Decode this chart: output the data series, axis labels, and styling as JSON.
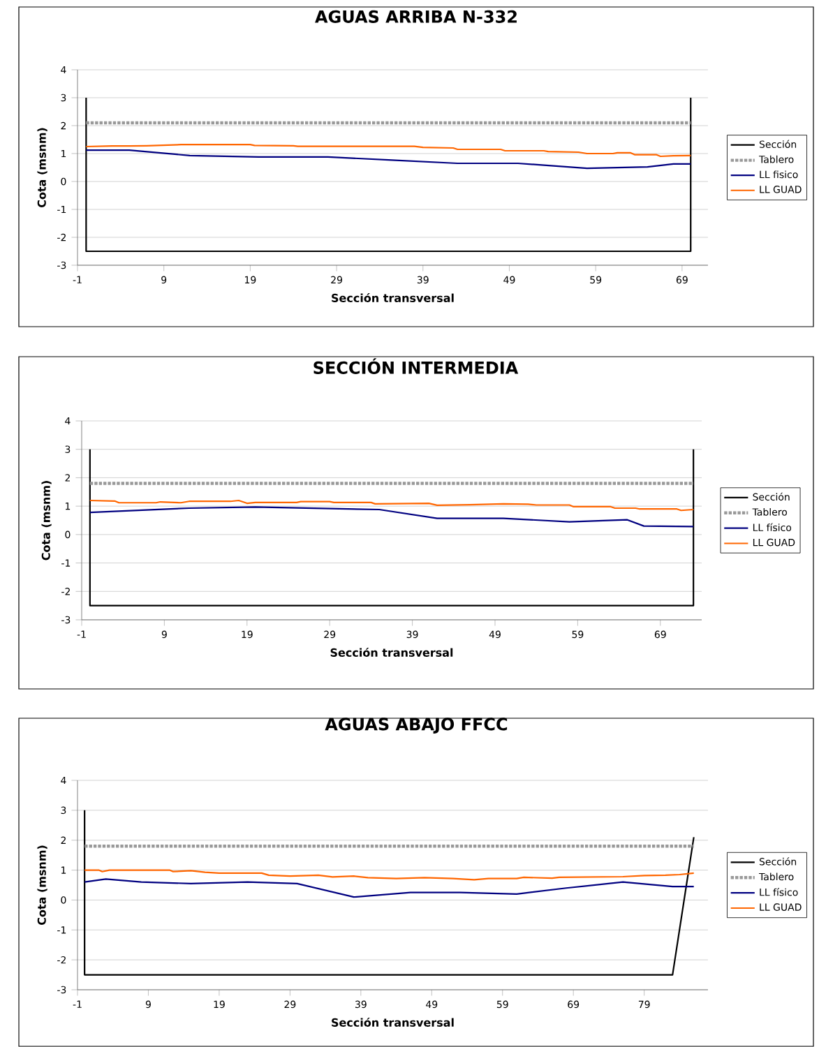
{
  "chart_data": [
    {
      "type": "line",
      "title": "AGUAS ARRIBA N-332",
      "xlabel": "Sección transversal",
      "ylabel": "Cota (msnm)",
      "xlim": [
        -1,
        72
      ],
      "xticks": [
        -1,
        9,
        19,
        29,
        39,
        49,
        59,
        69
      ],
      "ylim": [
        -3,
        4
      ],
      "yticks": [
        -3,
        -2,
        -1,
        0,
        1,
        2,
        3,
        4
      ],
      "grid": "y",
      "legend": "right",
      "series": [
        {
          "name": "Sección",
          "color": "#000000",
          "x": [
            0,
            0,
            70,
            70
          ],
          "values": [
            3,
            -2.5,
            -2.5,
            3
          ]
        },
        {
          "name": "Tablero",
          "color": "#999999",
          "line_style": "dotted",
          "x": [
            0,
            70
          ],
          "values": [
            2.1,
            2.1
          ]
        },
        {
          "name": "LL fisico",
          "color": "#000080",
          "x": [
            0,
            5,
            12,
            20,
            28,
            35,
            43,
            50,
            58,
            65,
            68,
            70
          ],
          "values": [
            1.12,
            1.12,
            0.93,
            0.88,
            0.88,
            0.77,
            0.65,
            0.65,
            0.47,
            0.52,
            0.63,
            0.63
          ]
        },
        {
          "name": "LL GUAD",
          "color": "#ff6600",
          "x": [
            0,
            3,
            5,
            7,
            11,
            19,
            19.5,
            24,
            24.5,
            38,
            39,
            42.5,
            43,
            48,
            48.5,
            53,
            53.5,
            57,
            58,
            61,
            61.5,
            63,
            63.5,
            66,
            66.5,
            68,
            70
          ],
          "values": [
            1.25,
            1.27,
            1.27,
            1.28,
            1.32,
            1.32,
            1.29,
            1.28,
            1.26,
            1.26,
            1.22,
            1.2,
            1.15,
            1.15,
            1.1,
            1.1,
            1.07,
            1.05,
            1.0,
            1.0,
            1.03,
            1.03,
            0.96,
            0.96,
            0.9,
            0.92,
            0.93
          ]
        }
      ]
    },
    {
      "type": "line",
      "title": "SECCIÓN INTERMEDIA",
      "xlabel": "Sección transversal",
      "ylabel": "Cota (msnm)",
      "xlim": [
        -1,
        74
      ],
      "xticks": [
        -1,
        9,
        19,
        29,
        39,
        49,
        59,
        69
      ],
      "ylim": [
        -3,
        4
      ],
      "yticks": [
        -3,
        -2,
        -1,
        0,
        1,
        2,
        3,
        4
      ],
      "grid": "y",
      "legend": "right",
      "series": [
        {
          "name": "Sección",
          "color": "#000000",
          "x": [
            0,
            0,
            73,
            73
          ],
          "values": [
            3,
            -2.5,
            -2.5,
            3
          ]
        },
        {
          "name": "Tablero",
          "color": "#999999",
          "line_style": "dotted",
          "x": [
            0,
            73
          ],
          "values": [
            1.8,
            1.8
          ]
        },
        {
          "name": "LL físico",
          "color": "#000080",
          "x": [
            0,
            12,
            20,
            35,
            42,
            50,
            58,
            65,
            67,
            73
          ],
          "values": [
            0.78,
            0.93,
            0.97,
            0.88,
            0.57,
            0.57,
            0.45,
            0.52,
            0.3,
            0.28
          ]
        },
        {
          "name": "LL GUAD",
          "color": "#ff6600",
          "x": [
            0,
            3,
            3.5,
            8,
            8.5,
            11,
            12,
            17,
            18,
            19,
            20,
            25,
            25.5,
            29,
            29.5,
            34,
            34.5,
            41,
            42,
            46,
            50,
            53,
            54,
            58,
            58.5,
            63,
            63.5,
            66,
            66.5,
            71,
            71.5,
            73
          ],
          "values": [
            1.2,
            1.18,
            1.12,
            1.12,
            1.15,
            1.12,
            1.17,
            1.17,
            1.2,
            1.1,
            1.13,
            1.13,
            1.16,
            1.16,
            1.13,
            1.13,
            1.08,
            1.1,
            1.03,
            1.05,
            1.08,
            1.07,
            1.04,
            1.04,
            0.98,
            0.98,
            0.93,
            0.93,
            0.9,
            0.9,
            0.85,
            0.88
          ]
        }
      ]
    },
    {
      "type": "line",
      "title": "AGUAS ABAJO FFCC",
      "xlabel": "Sección transversal",
      "ylabel": "Cota (msnm)",
      "xlim": [
        -1,
        88
      ],
      "xticks": [
        -1,
        9,
        19,
        29,
        39,
        49,
        59,
        69,
        79
      ],
      "ylim": [
        -3,
        4
      ],
      "yticks": [
        -3,
        -2,
        -1,
        0,
        1,
        2,
        3,
        4
      ],
      "grid": "y",
      "legend": "right",
      "series": [
        {
          "name": "Sección",
          "color": "#000000",
          "x": [
            0,
            0,
            83,
            86
          ],
          "values": [
            3,
            -2.5,
            -2.5,
            2.1
          ]
        },
        {
          "name": "Tablero",
          "color": "#999999",
          "line_style": "dotted",
          "x": [
            0,
            86
          ],
          "values": [
            1.8,
            1.8
          ]
        },
        {
          "name": "LL físico",
          "color": "#000080",
          "x": [
            0,
            3,
            8,
            15,
            23,
            30,
            38,
            46,
            53,
            61,
            68,
            76,
            83,
            86
          ],
          "values": [
            0.6,
            0.7,
            0.6,
            0.55,
            0.6,
            0.55,
            0.1,
            0.25,
            0.25,
            0.2,
            0.4,
            0.6,
            0.45,
            0.45
          ]
        },
        {
          "name": "LL GUAD",
          "color": "#ff6600",
          "x": [
            0,
            2,
            2.5,
            3.5,
            12,
            12.5,
            15,
            17,
            19,
            25,
            26,
            29,
            33,
            35,
            38,
            40,
            44,
            48,
            52,
            55,
            57,
            61,
            62,
            66,
            67,
            76,
            79,
            82,
            84,
            86
          ],
          "values": [
            1.0,
            1.0,
            0.95,
            1.0,
            1.0,
            0.95,
            0.98,
            0.93,
            0.9,
            0.9,
            0.83,
            0.8,
            0.83,
            0.77,
            0.8,
            0.75,
            0.72,
            0.75,
            0.72,
            0.68,
            0.72,
            0.72,
            0.76,
            0.73,
            0.76,
            0.78,
            0.82,
            0.83,
            0.85,
            0.9
          ]
        }
      ]
    }
  ]
}
